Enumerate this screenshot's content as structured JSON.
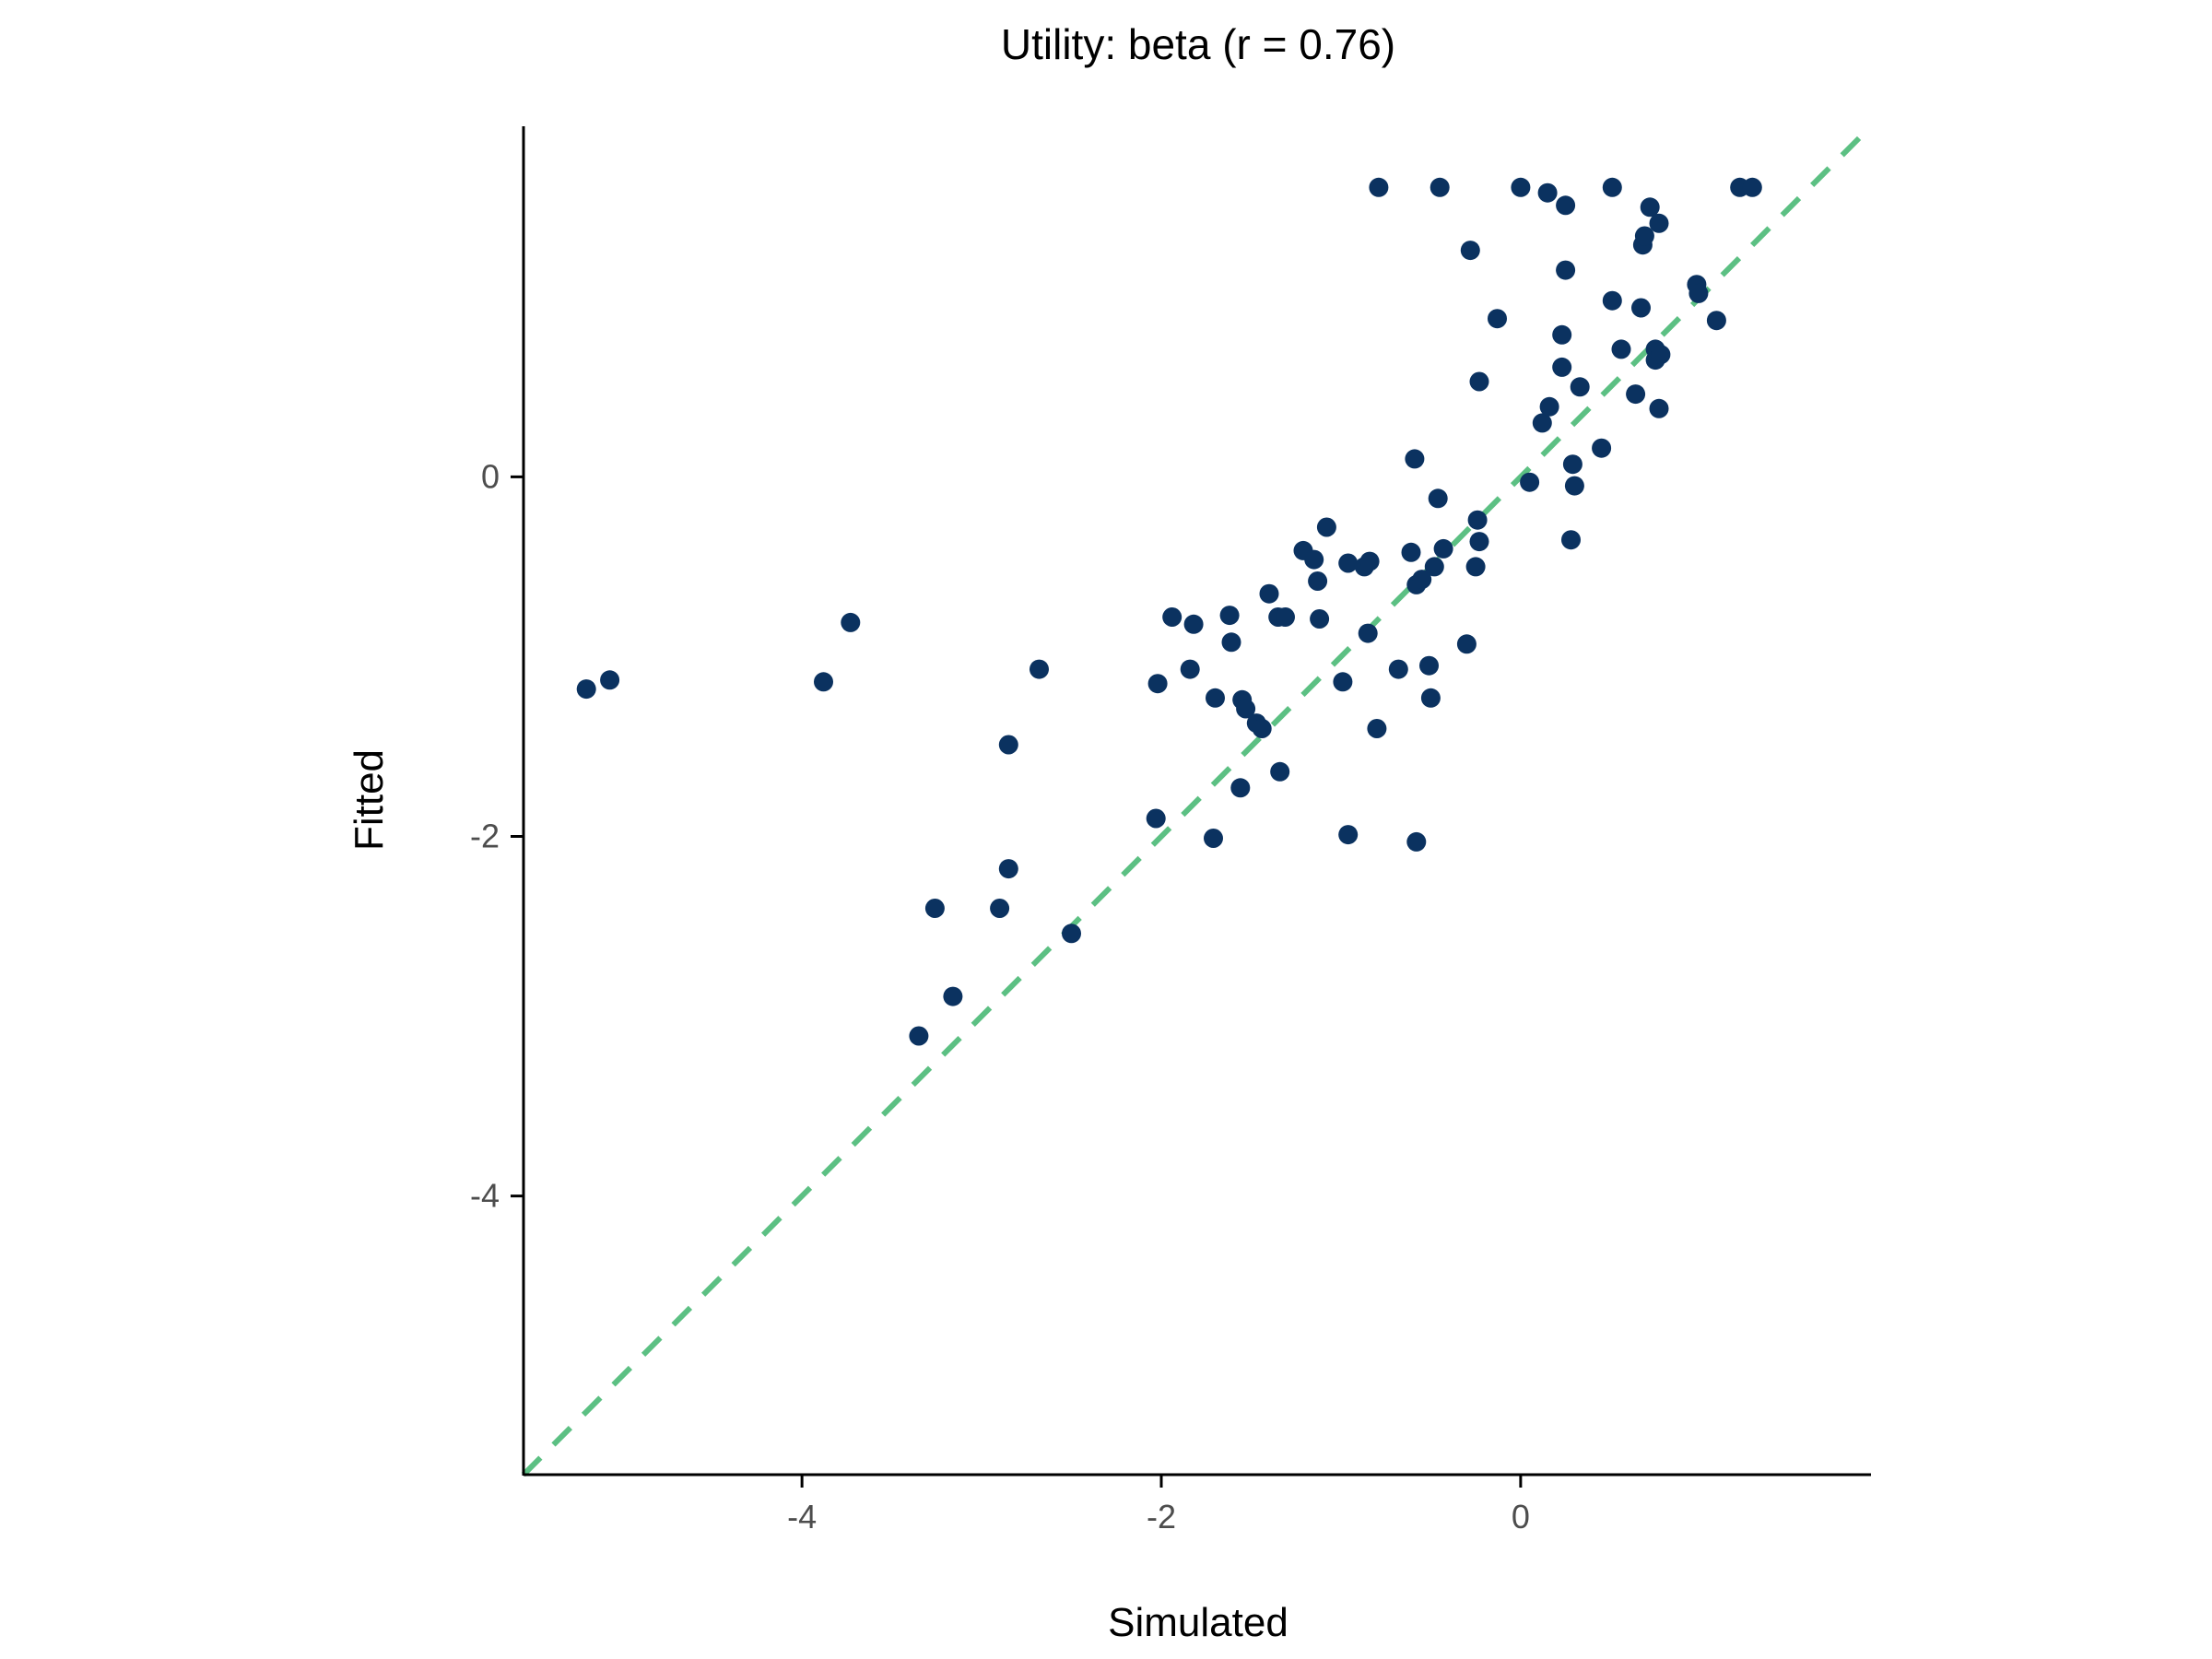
{
  "chart_data": {
    "type": "scatter",
    "title": "Utility: beta (r = 0.76)",
    "xlabel": "Simulated",
    "ylabel": "Fitted",
    "xlim": [
      -5.55,
      1.95
    ],
    "ylim": [
      -5.55,
      1.95
    ],
    "xticks": [
      -4,
      -2,
      0
    ],
    "yticks": [
      -4,
      -2,
      0
    ],
    "xtick_labels": [
      "-4",
      "-2",
      "0"
    ],
    "ytick_labels": [
      "-4",
      "-2",
      "0"
    ],
    "grid": false,
    "legend": "none",
    "point_color": "#0B3260",
    "reference_line": {
      "style": "dashed",
      "color": "#5CC083",
      "slope": 1,
      "intercept": 0
    },
    "points": [
      [
        -5.2,
        -1.18
      ],
      [
        -5.07,
        -1.13
      ],
      [
        -3.88,
        -1.14
      ],
      [
        -3.73,
        -0.81
      ],
      [
        -3.26,
        -2.4
      ],
      [
        -3.16,
        -2.89
      ],
      [
        -3.35,
        -3.11
      ],
      [
        -2.9,
        -2.4
      ],
      [
        -2.85,
        -2.18
      ],
      [
        -2.85,
        -1.49
      ],
      [
        -2.68,
        -1.07
      ],
      [
        -2.5,
        -2.54
      ],
      [
        -2.03,
        -1.9
      ],
      [
        -2.02,
        -1.15
      ],
      [
        -1.94,
        -0.78
      ],
      [
        -1.84,
        -1.07
      ],
      [
        -1.82,
        -0.82
      ],
      [
        -1.71,
        -2.01
      ],
      [
        -1.7,
        -1.23
      ],
      [
        -1.62,
        -0.77
      ],
      [
        -1.61,
        -0.92
      ],
      [
        -1.56,
        -1.73
      ],
      [
        -1.55,
        -1.24
      ],
      [
        -1.53,
        -1.29
      ],
      [
        -1.47,
        -1.37
      ],
      [
        -1.44,
        -1.4
      ],
      [
        -1.4,
        -0.65
      ],
      [
        -1.35,
        -0.78
      ],
      [
        -1.31,
        -0.78
      ],
      [
        -1.34,
        -1.64
      ],
      [
        -1.21,
        -0.41
      ],
      [
        -1.15,
        -0.46
      ],
      [
        -1.13,
        -0.58
      ],
      [
        -1.12,
        -0.79
      ],
      [
        -1.08,
        -0.28
      ],
      [
        -0.99,
        -1.14
      ],
      [
        -0.96,
        -0.48
      ],
      [
        -0.96,
        -1.99
      ],
      [
        -0.87,
        -0.5
      ],
      [
        -0.85,
        -0.87
      ],
      [
        -0.84,
        -0.47
      ],
      [
        -0.8,
        -1.4
      ],
      [
        -0.79,
        1.61
      ],
      [
        -0.68,
        -1.07
      ],
      [
        -0.61,
        -0.42
      ],
      [
        -0.59,
        0.1
      ],
      [
        -0.58,
        -0.6
      ],
      [
        -0.58,
        -2.03
      ],
      [
        -0.55,
        -0.57
      ],
      [
        -0.51,
        -1.05
      ],
      [
        -0.5,
        -1.23
      ],
      [
        -0.48,
        -0.5
      ],
      [
        -0.46,
        -0.12
      ],
      [
        -0.45,
        1.61
      ],
      [
        -0.43,
        -0.4
      ],
      [
        -0.3,
        -0.93
      ],
      [
        -0.28,
        1.26
      ],
      [
        -0.25,
        -0.5
      ],
      [
        -0.24,
        -0.24
      ],
      [
        -0.23,
        0.53
      ],
      [
        -0.23,
        -0.36
      ],
      [
        -0.13,
        0.88
      ],
      [
        0.0,
        1.61
      ],
      [
        0.05,
        -0.03
      ],
      [
        0.12,
        0.3
      ],
      [
        0.15,
        1.58
      ],
      [
        0.16,
        0.39
      ],
      [
        0.23,
        0.61
      ],
      [
        0.23,
        0.79
      ],
      [
        0.25,
        1.15
      ],
      [
        0.25,
        1.51
      ],
      [
        0.28,
        -0.35
      ],
      [
        0.29,
        0.07
      ],
      [
        0.3,
        -0.05
      ],
      [
        0.33,
        0.5
      ],
      [
        0.45,
        0.16
      ],
      [
        0.51,
        0.98
      ],
      [
        0.51,
        1.61
      ],
      [
        0.56,
        0.71
      ],
      [
        0.64,
        0.46
      ],
      [
        0.67,
        0.94
      ],
      [
        0.68,
        1.29
      ],
      [
        0.69,
        1.34
      ],
      [
        0.72,
        1.5
      ],
      [
        0.75,
        0.71
      ],
      [
        0.75,
        0.65
      ],
      [
        0.77,
        0.38
      ],
      [
        0.77,
        1.41
      ],
      [
        0.78,
        0.68
      ],
      [
        0.98,
        1.07
      ],
      [
        0.99,
        1.02
      ],
      [
        1.09,
        0.87
      ],
      [
        1.22,
        1.61
      ],
      [
        1.29,
        1.61
      ]
    ]
  }
}
